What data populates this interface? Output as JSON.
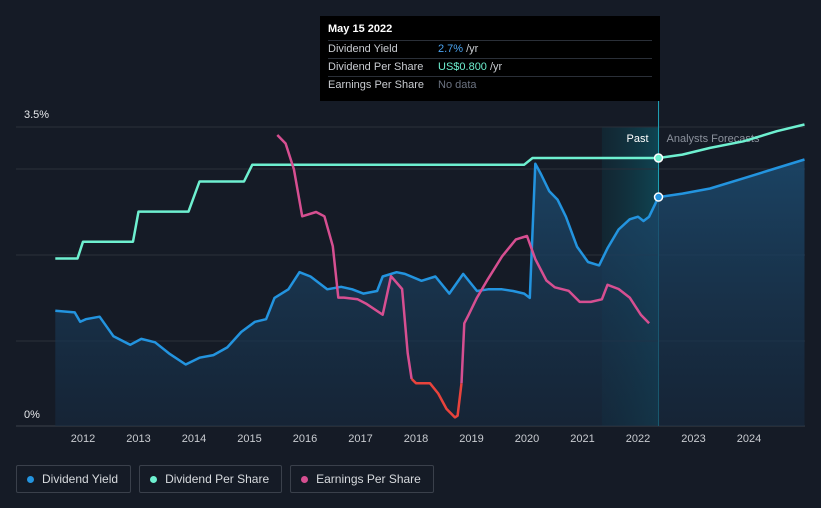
{
  "chart_data": {
    "type": "line",
    "y_axis": {
      "ticks": [
        "3.5%",
        "0%"
      ],
      "ylim": [
        0,
        3.5
      ],
      "grid": true
    },
    "x_axis": {
      "ticks": [
        "2012",
        "2013",
        "2014",
        "2015",
        "2016",
        "2017",
        "2018",
        "2019",
        "2020",
        "2021",
        "2022",
        "2023",
        "2024"
      ],
      "xlim": [
        2011.4,
        2025.0
      ]
    },
    "regions": {
      "past_label": "Past",
      "forecast_label": "Analysts Forecasts",
      "past_shade_start": 2021.35,
      "divider_at": 2022.37
    },
    "series": [
      {
        "name": "Dividend Yield",
        "color": "#2394df",
        "unit": "%",
        "filled": true,
        "x": [
          2011.5,
          2011.85,
          2011.95,
          2012.05,
          2012.3,
          2012.55,
          2012.85,
          2013.05,
          2013.3,
          2013.55,
          2013.85,
          2014.1,
          2014.35,
          2014.6,
          2014.85,
          2015.1,
          2015.3,
          2015.45,
          2015.7,
          2015.9,
          2016.1,
          2016.4,
          2016.65,
          2016.85,
          2017.05,
          2017.3,
          2017.4,
          2017.65,
          2017.8,
          2018.1,
          2018.35,
          2018.6,
          2018.85,
          2019.1,
          2019.3,
          2019.55,
          2019.75,
          2019.95,
          2020.05,
          2020.15,
          2020.25,
          2020.4,
          2020.55,
          2020.7,
          2020.9,
          2021.1,
          2021.3,
          2021.45,
          2021.65,
          2021.85,
          2022.0,
          2022.1,
          2022.2,
          2022.37,
          2022.8,
          2023.3,
          2023.9,
          2024.5,
          2025.0
        ],
        "y": [
          1.35,
          1.33,
          1.22,
          1.25,
          1.28,
          1.05,
          0.95,
          1.02,
          0.98,
          0.85,
          0.72,
          0.8,
          0.83,
          0.92,
          1.1,
          1.22,
          1.25,
          1.5,
          1.6,
          1.8,
          1.75,
          1.6,
          1.63,
          1.6,
          1.55,
          1.58,
          1.75,
          1.8,
          1.78,
          1.7,
          1.75,
          1.55,
          1.78,
          1.58,
          1.6,
          1.6,
          1.58,
          1.55,
          1.5,
          3.07,
          2.95,
          2.75,
          2.65,
          2.45,
          2.1,
          1.92,
          1.88,
          2.08,
          2.3,
          2.42,
          2.45,
          2.4,
          2.45,
          2.68,
          2.72,
          2.78,
          2.9,
          3.02,
          3.12
        ]
      },
      {
        "name": "Dividend Per Share",
        "color": "#6ef0d0",
        "unit": "US$",
        "x": [
          2011.5,
          2011.9,
          2012.0,
          2012.9,
          2013.0,
          2013.9,
          2014.1,
          2014.9,
          2015.05,
          2015.95,
          2016.1,
          2019.95,
          2020.1,
          2022.37,
          2022.8,
          2023.3,
          2023.9,
          2024.5,
          2025.0
        ],
        "y": [
          0.5,
          0.5,
          0.55,
          0.55,
          0.64,
          0.64,
          0.73,
          0.73,
          0.78,
          0.78,
          0.78,
          0.78,
          0.8,
          0.8,
          0.81,
          0.83,
          0.85,
          0.88,
          0.9
        ]
      },
      {
        "name": "Earnings Per Share",
        "color": "#d64f91",
        "color_negative": "#e8433c",
        "x": [
          2015.5,
          2015.65,
          2015.8,
          2015.95,
          2016.2,
          2016.35,
          2016.5,
          2016.6,
          2016.7,
          2016.95,
          2017.1,
          2017.4,
          2017.55,
          2017.75,
          2017.85,
          2017.92,
          2018.0,
          2018.25,
          2018.4,
          2018.55,
          2018.7,
          2018.75,
          2018.82,
          2018.87,
          2018.95,
          2019.1,
          2019.3,
          2019.55,
          2019.8,
          2020.0,
          2020.15,
          2020.35,
          2020.5,
          2020.75,
          2020.95,
          2021.15,
          2021.35,
          2021.45,
          2021.65,
          2021.85,
          2022.05,
          2022.2
        ],
        "y": [
          3.4,
          3.3,
          3.0,
          2.45,
          2.5,
          2.45,
          2.1,
          1.5,
          1.5,
          1.48,
          1.43,
          1.3,
          1.75,
          1.6,
          0.85,
          0.55,
          0.5,
          0.5,
          0.38,
          0.2,
          0.1,
          0.12,
          0.5,
          1.2,
          1.3,
          1.5,
          1.72,
          1.98,
          2.18,
          2.22,
          1.95,
          1.7,
          1.62,
          1.58,
          1.45,
          1.45,
          1.48,
          1.65,
          1.6,
          1.5,
          1.3,
          1.2
        ]
      }
    ]
  },
  "tooltip": {
    "date": "May 15 2022",
    "rows": [
      {
        "name": "Dividend Yield",
        "value": "2.7%",
        "unit": "/yr",
        "color": "#4aa3f0"
      },
      {
        "name": "Dividend Per Share",
        "value": "US$0.800",
        "unit": "/yr",
        "color": "#6ef0d0"
      },
      {
        "name": "Earnings Per Share",
        "value": "No data",
        "unit": ""
      }
    ]
  },
  "legend": [
    {
      "label": "Dividend Yield",
      "color": "#2394df"
    },
    {
      "label": "Dividend Per Share",
      "color": "#6ef0d0"
    },
    {
      "label": "Earnings Per Share",
      "color": "#d64f91"
    }
  ]
}
